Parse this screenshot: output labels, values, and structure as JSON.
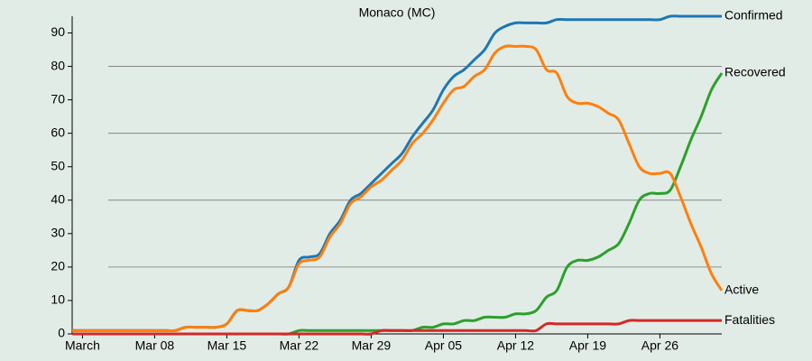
{
  "chart_data": {
    "type": "line",
    "title": "Monaco (MC)",
    "x": [
      "Feb 29",
      "Mar 01",
      "Mar 02",
      "Mar 03",
      "Mar 04",
      "Mar 05",
      "Mar 06",
      "Mar 07",
      "Mar 08",
      "Mar 09",
      "Mar 10",
      "Mar 11",
      "Mar 12",
      "Mar 13",
      "Mar 14",
      "Mar 15",
      "Mar 16",
      "Mar 17",
      "Mar 18",
      "Mar 19",
      "Mar 20",
      "Mar 21",
      "Mar 22",
      "Mar 23",
      "Mar 24",
      "Mar 25",
      "Mar 26",
      "Mar 27",
      "Mar 28",
      "Mar 29",
      "Mar 30",
      "Mar 31",
      "Apr 01",
      "Apr 02",
      "Apr 03",
      "Apr 04",
      "Apr 05",
      "Apr 06",
      "Apr 07",
      "Apr 08",
      "Apr 09",
      "Apr 10",
      "Apr 11",
      "Apr 12",
      "Apr 13",
      "Apr 14",
      "Apr 15",
      "Apr 16",
      "Apr 17",
      "Apr 18",
      "Apr 19",
      "Apr 20",
      "Apr 21",
      "Apr 22",
      "Apr 23",
      "Apr 24",
      "Apr 25",
      "Apr 26",
      "Apr 27",
      "Apr 28",
      "Apr 29",
      "Apr 30",
      "May 01",
      "May 02"
    ],
    "xticks": [
      {
        "value": "Mar 01",
        "label": "March"
      },
      "Mar 08",
      "Mar 15",
      "Mar 22",
      "Mar 29",
      "Apr 05",
      "Apr 12",
      "Apr 19",
      "Apr 26"
    ],
    "ylim": [
      0,
      95
    ],
    "yticks": [
      0,
      10,
      20,
      30,
      40,
      50,
      60,
      70,
      80,
      90
    ],
    "grid_lines": [
      20,
      40,
      60,
      80
    ],
    "series": [
      {
        "name": "Confirmed",
        "color": "#1f77b4",
        "values": [
          1,
          1,
          1,
          1,
          1,
          1,
          1,
          1,
          1,
          1,
          1,
          2,
          2,
          2,
          2,
          3,
          7,
          7,
          7,
          9,
          12,
          14,
          22,
          23,
          24,
          30,
          34,
          40,
          42,
          45,
          48,
          51,
          54,
          59,
          63,
          67,
          73,
          77,
          79,
          82,
          85,
          90,
          92,
          93,
          93,
          93,
          93,
          94,
          94,
          94,
          94,
          94,
          94,
          94,
          94,
          94,
          94,
          94,
          95,
          95,
          95,
          95,
          95,
          95
        ]
      },
      {
        "name": "Recovered",
        "color": "#2ca02c",
        "values": [
          0,
          0,
          0,
          0,
          0,
          0,
          0,
          0,
          0,
          0,
          0,
          0,
          0,
          0,
          0,
          0,
          0,
          0,
          0,
          0,
          0,
          0,
          1,
          1,
          1,
          1,
          1,
          1,
          1,
          1,
          1,
          1,
          1,
          1,
          2,
          2,
          3,
          3,
          4,
          4,
          5,
          5,
          5,
          6,
          6,
          7,
          11,
          13,
          20,
          22,
          22,
          23,
          25,
          27,
          33,
          40,
          42,
          42,
          43,
          50,
          58,
          65,
          73,
          78
        ]
      },
      {
        "name": "Active",
        "color": "#ff7f0e",
        "values": [
          1,
          1,
          1,
          1,
          1,
          1,
          1,
          1,
          1,
          1,
          1,
          2,
          2,
          2,
          2,
          3,
          7,
          7,
          7,
          9,
          12,
          14,
          21,
          22,
          23,
          29,
          33,
          39,
          41,
          44,
          46,
          49,
          52,
          57,
          60,
          64,
          69,
          73,
          74,
          77,
          79,
          84,
          86,
          86,
          86,
          85,
          79,
          78,
          71,
          69,
          69,
          68,
          66,
          64,
          57,
          50,
          48,
          48,
          48,
          41,
          33,
          26,
          18,
          13
        ]
      },
      {
        "name": "Fatalities",
        "color": "#d62728",
        "values": [
          0,
          0,
          0,
          0,
          0,
          0,
          0,
          0,
          0,
          0,
          0,
          0,
          0,
          0,
          0,
          0,
          0,
          0,
          0,
          0,
          0,
          0,
          0,
          0,
          0,
          0,
          0,
          0,
          0,
          0,
          1,
          1,
          1,
          1,
          1,
          1,
          1,
          1,
          1,
          1,
          1,
          1,
          1,
          1,
          1,
          1,
          3,
          3,
          3,
          3,
          3,
          3,
          3,
          3,
          4,
          4,
          4,
          4,
          4,
          4,
          4,
          4,
          4,
          4
        ]
      }
    ]
  }
}
